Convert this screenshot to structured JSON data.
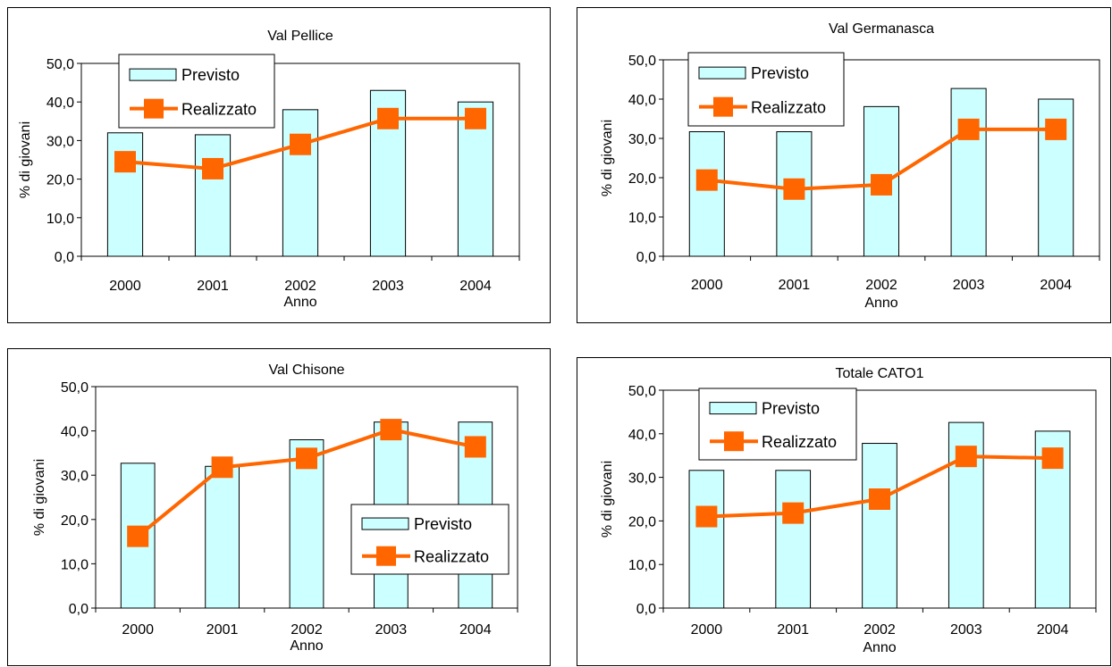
{
  "colors": {
    "bar_fill": "#ccffff",
    "bar_stroke": "#000000",
    "line": "#ff6600",
    "marker": "#ff6600"
  },
  "chart_data": [
    {
      "type": "bar",
      "title": "Val Pellice",
      "xlabel": "Anno",
      "ylabel": "% di giovani",
      "ylim": [
        0,
        50
      ],
      "yticks": [
        "0,0",
        "10,0",
        "20,0",
        "30,0",
        "40,0",
        "50,0"
      ],
      "categories": [
        "2000",
        "2001",
        "2002",
        "2003",
        "2004"
      ],
      "legend_position": "top-left",
      "series": [
        {
          "name": "Previsto",
          "kind": "bar",
          "values": [
            32.0,
            31.5,
            38.0,
            43.0,
            40.0
          ]
        },
        {
          "name": "Realizzato",
          "kind": "line",
          "values": [
            24.5,
            22.7,
            29.0,
            35.7,
            35.7
          ]
        }
      ]
    },
    {
      "type": "bar",
      "title": "Val Germanasca",
      "xlabel": "Anno",
      "ylabel": "% di giovani",
      "ylim": [
        0,
        50
      ],
      "yticks": [
        "0,0",
        "10,0",
        "20,0",
        "30,0",
        "40,0",
        "50,0"
      ],
      "categories": [
        "2000",
        "2001",
        "2002",
        "2003",
        "2004"
      ],
      "legend_position": "top-left",
      "series": [
        {
          "name": "Previsto",
          "kind": "bar",
          "values": [
            31.7,
            31.7,
            38.1,
            42.7,
            40.0
          ]
        },
        {
          "name": "Realizzato",
          "kind": "line",
          "values": [
            19.4,
            17.1,
            18.2,
            32.3,
            32.3
          ]
        }
      ]
    },
    {
      "type": "bar",
      "title": "Val Chisone",
      "xlabel": "Anno",
      "ylabel": "% di giovani",
      "ylim": [
        0,
        50
      ],
      "yticks": [
        "0,0",
        "10,0",
        "20,0",
        "30,0",
        "40,0",
        "50,0"
      ],
      "categories": [
        "2000",
        "2001",
        "2002",
        "2003",
        "2004"
      ],
      "legend_position": "bottom-right",
      "series": [
        {
          "name": "Previsto",
          "kind": "bar",
          "values": [
            32.7,
            32.0,
            38.0,
            42.0,
            42.0
          ]
        },
        {
          "name": "Realizzato",
          "kind": "line",
          "values": [
            16.2,
            31.8,
            33.8,
            40.3,
            36.4
          ]
        }
      ]
    },
    {
      "type": "bar",
      "title": "Totale CATO1",
      "xlabel": "Anno",
      "ylabel": "% di giovani",
      "ylim": [
        0,
        50
      ],
      "yticks": [
        "0,0",
        "10,0",
        "20,0",
        "30,0",
        "40,0",
        "50,0"
      ],
      "categories": [
        "2000",
        "2001",
        "2002",
        "2003",
        "2004"
      ],
      "legend_position": "top-left",
      "series": [
        {
          "name": "Previsto",
          "kind": "bar",
          "values": [
            31.6,
            31.6,
            37.8,
            42.6,
            40.6
          ]
        },
        {
          "name": "Realizzato",
          "kind": "line",
          "values": [
            21.0,
            21.8,
            25.0,
            34.8,
            34.4
          ]
        }
      ]
    }
  ]
}
